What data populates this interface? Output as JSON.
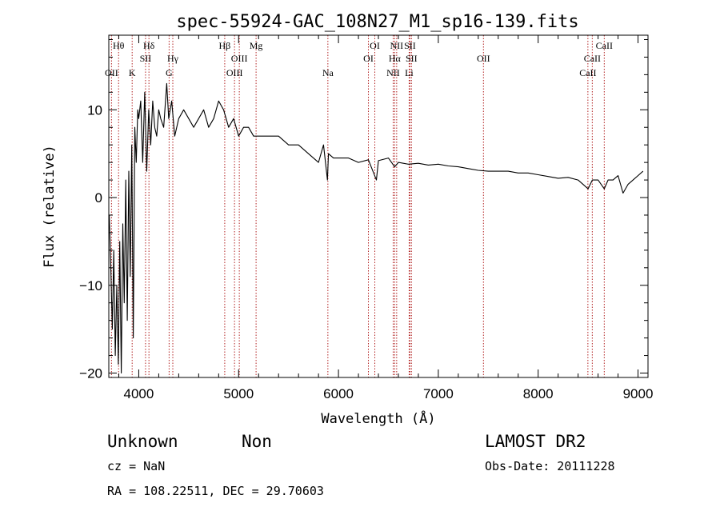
{
  "chart_data": {
    "type": "line",
    "title": "spec-55924-GAC_108N27_M1_sp16-139.fits",
    "xlabel": "Wavelength (Å)",
    "ylabel": "Flux (relative)",
    "xlim": [
      3700,
      9100
    ],
    "ylim": [
      -20.5,
      18.5
    ],
    "xticks": [
      4000,
      5000,
      6000,
      7000,
      8000,
      9000
    ],
    "xtick_labels": [
      "4000",
      "5000",
      "6000",
      "7000",
      "8000",
      "9000"
    ],
    "yticks": [
      -20,
      -10,
      0,
      10
    ],
    "ytick_labels": [
      "−20",
      "−10",
      "0",
      "10"
    ],
    "series": [
      {
        "line_color": "#000000",
        "x": [
          3705,
          3720,
          3735,
          3750,
          3765,
          3780,
          3795,
          3810,
          3825,
          3840,
          3855,
          3870,
          3885,
          3900,
          3915,
          3930,
          3945,
          3960,
          3975,
          3990,
          4000,
          4020,
          4040,
          4060,
          4080,
          4100,
          4120,
          4140,
          4160,
          4180,
          4200,
          4220,
          4250,
          4280,
          4300,
          4330,
          4360,
          4400,
          4450,
          4500,
          4550,
          4600,
          4650,
          4700,
          4750,
          4800,
          4850,
          4900,
          4950,
          5000,
          5050,
          5100,
          5150,
          5200,
          5300,
          5400,
          5500,
          5600,
          5700,
          5800,
          5850,
          5890,
          5900,
          5950,
          6000,
          6100,
          6200,
          6300,
          6380,
          6400,
          6500,
          6563,
          6600,
          6700,
          6800,
          6900,
          7000,
          7100,
          7200,
          7300,
          7400,
          7500,
          7600,
          7700,
          7800,
          7900,
          8000,
          8100,
          8200,
          8300,
          8400,
          8500,
          8542,
          8600,
          8662,
          8700,
          8750,
          8800,
          8850,
          8900,
          8950,
          9000,
          9050
        ],
        "y": [
          -2,
          -8,
          -15,
          -6,
          -18,
          -10,
          -19,
          -5,
          -20,
          -3,
          -12,
          2,
          -14,
          3,
          -9,
          6,
          -16,
          8,
          4,
          10,
          9,
          11,
          4,
          12,
          3,
          10,
          6,
          11,
          8,
          7,
          10,
          9,
          8,
          13,
          9,
          11,
          7,
          9,
          10,
          9,
          8,
          9,
          10,
          8,
          9,
          11,
          10,
          8,
          9,
          7,
          8,
          8,
          7,
          7,
          7,
          7,
          6,
          6,
          5,
          4,
          6,
          2,
          5,
          4.5,
          4.5,
          4.5,
          4,
          4.3,
          2,
          4.2,
          4.5,
          3.5,
          4,
          3.8,
          3.9,
          3.7,
          3.8,
          3.6,
          3.5,
          3.3,
          3.1,
          3,
          3,
          3,
          2.8,
          2.8,
          2.6,
          2.4,
          2.2,
          2.3,
          2.0,
          1.0,
          2.0,
          2.0,
          1.0,
          2.0,
          2.0,
          2.5,
          0.5,
          1.5,
          2.0,
          2.5,
          3.0
        ]
      }
    ],
    "lines": [
      {
        "wave": 3727,
        "labels": [
          "OII"
        ],
        "tier": 3
      },
      {
        "wave": 3798,
        "labels": [
          "Hθ"
        ],
        "tier": 1
      },
      {
        "wave": 3934,
        "labels": [
          "K"
        ],
        "tier": 3
      },
      {
        "wave": 4068,
        "labels": [
          "SII"
        ],
        "tier": 2
      },
      {
        "wave": 4102,
        "labels": [
          "Hδ"
        ],
        "tier": 1
      },
      {
        "wave": 4304,
        "labels": [
          "G"
        ],
        "tier": 3
      },
      {
        "wave": 4341,
        "labels": [
          "Hγ"
        ],
        "tier": 2
      },
      {
        "wave": 4861,
        "labels": [
          "Hβ"
        ],
        "tier": 1
      },
      {
        "wave": 4959,
        "labels": [
          "OIII"
        ],
        "tier": 3
      },
      {
        "wave": 5007,
        "labels": [
          "OIII"
        ],
        "tier": 2
      },
      {
        "wave": 5175,
        "labels": [
          "Mg"
        ],
        "tier": 1
      },
      {
        "wave": 5894,
        "labels": [
          "Na"
        ],
        "tier": 3
      },
      {
        "wave": 6300,
        "labels": [
          "OI"
        ],
        "tier": 2
      },
      {
        "wave": 6364,
        "labels": [
          "OI"
        ],
        "tier": 1
      },
      {
        "wave": 6548,
        "labels": [
          "NII"
        ],
        "tier": 3
      },
      {
        "wave": 6563,
        "labels": [
          "Hα"
        ],
        "tier": 2
      },
      {
        "wave": 6583,
        "labels": [
          "NII"
        ],
        "tier": 1
      },
      {
        "wave": 6708,
        "labels": [
          "Li"
        ],
        "tier": 3
      },
      {
        "wave": 6716,
        "labels": [
          "SII"
        ],
        "tier": 1
      },
      {
        "wave": 6731,
        "labels": [
          "SII"
        ],
        "tier": 2
      },
      {
        "wave": 7452,
        "labels": [
          "OII"
        ],
        "tier": 2
      },
      {
        "wave": 8498,
        "labels": [
          "CaII"
        ],
        "tier": 3
      },
      {
        "wave": 8542,
        "labels": [
          "CaII"
        ],
        "tier": 2
      },
      {
        "wave": 8662,
        "labels": [
          "CaII"
        ],
        "tier": 1
      }
    ],
    "line_color": "#b22222"
  },
  "info": {
    "class_text": "Unknown",
    "subclass_text": "Non",
    "survey_text": "LAMOST DR2",
    "cz_text": "cz = NaN",
    "obsdate_text": "Obs-Date: 20111228",
    "radec_text": "RA = 108.22511, DEC =  29.70603"
  }
}
